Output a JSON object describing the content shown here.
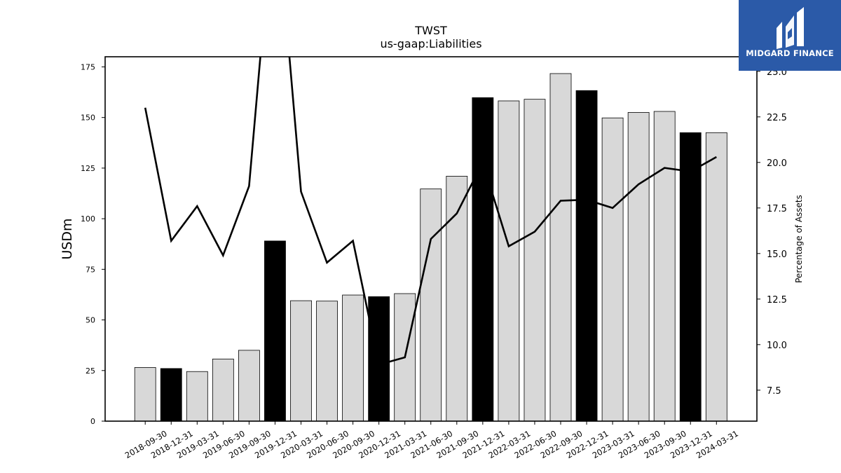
{
  "brand": {
    "name": "MIDGARD FINANCE",
    "color": "#2b5aa8"
  },
  "chart_data": {
    "type": "bar",
    "title": "TWST",
    "subtitle": "us-gaap:Liabilities",
    "ylabel": "USDm",
    "y2label": "Percentage of Assets",
    "ylim": [
      0,
      180
    ],
    "y2lim": [
      5.8,
      25.8
    ],
    "yticks": [
      "0",
      "25",
      "50",
      "75",
      "100",
      "125",
      "150",
      "175"
    ],
    "y2ticks": [
      "7.5",
      "10.0",
      "12.5",
      "15.0",
      "17.5",
      "20.0",
      "22.5",
      "25.0"
    ],
    "categories": [
      "2018-09-30",
      "2018-12-31",
      "2019-03-31",
      "2019-06-30",
      "2019-09-30",
      "2019-12-31",
      "2020-03-31",
      "2020-06-30",
      "2020-09-30",
      "2020-12-31",
      "2021-03-31",
      "2021-06-30",
      "2021-09-30",
      "2021-12-31",
      "2022-03-31",
      "2022-06-30",
      "2022-09-30",
      "2022-12-31",
      "2023-03-31",
      "2023-06-30",
      "2023-09-30",
      "2023-12-31",
      "2024-03-31"
    ],
    "series": [
      {
        "kind": "bar",
        "axis": "left",
        "values": [
          26.5,
          26,
          24.5,
          30.7,
          35,
          89,
          59.5,
          59.3,
          62.3,
          61.5,
          63,
          114.7,
          121,
          159.8,
          158.2,
          159,
          171.7,
          163.3,
          149.8,
          152.5,
          153,
          142.5,
          142.5
        ],
        "highlight": [
          false,
          true,
          false,
          false,
          false,
          true,
          false,
          false,
          false,
          true,
          false,
          false,
          false,
          true,
          false,
          false,
          false,
          true,
          false,
          false,
          false,
          true,
          false
        ]
      },
      {
        "kind": "line",
        "axis": "right",
        "values": [
          23.0,
          15.7,
          17.6,
          14.9,
          18.7,
          35.0,
          18.4,
          14.5,
          15.7,
          8.9,
          9.3,
          15.8,
          17.2,
          20.0,
          15.4,
          16.2,
          17.9,
          17.95,
          17.5,
          18.8,
          19.7,
          19.5,
          20.3
        ]
      }
    ],
    "colors": {
      "bar": "#d8d8d8",
      "bar_highlight": "#000000",
      "bar_edge": "#000000",
      "line": "#000000"
    },
    "grid": false,
    "legend": "none"
  }
}
